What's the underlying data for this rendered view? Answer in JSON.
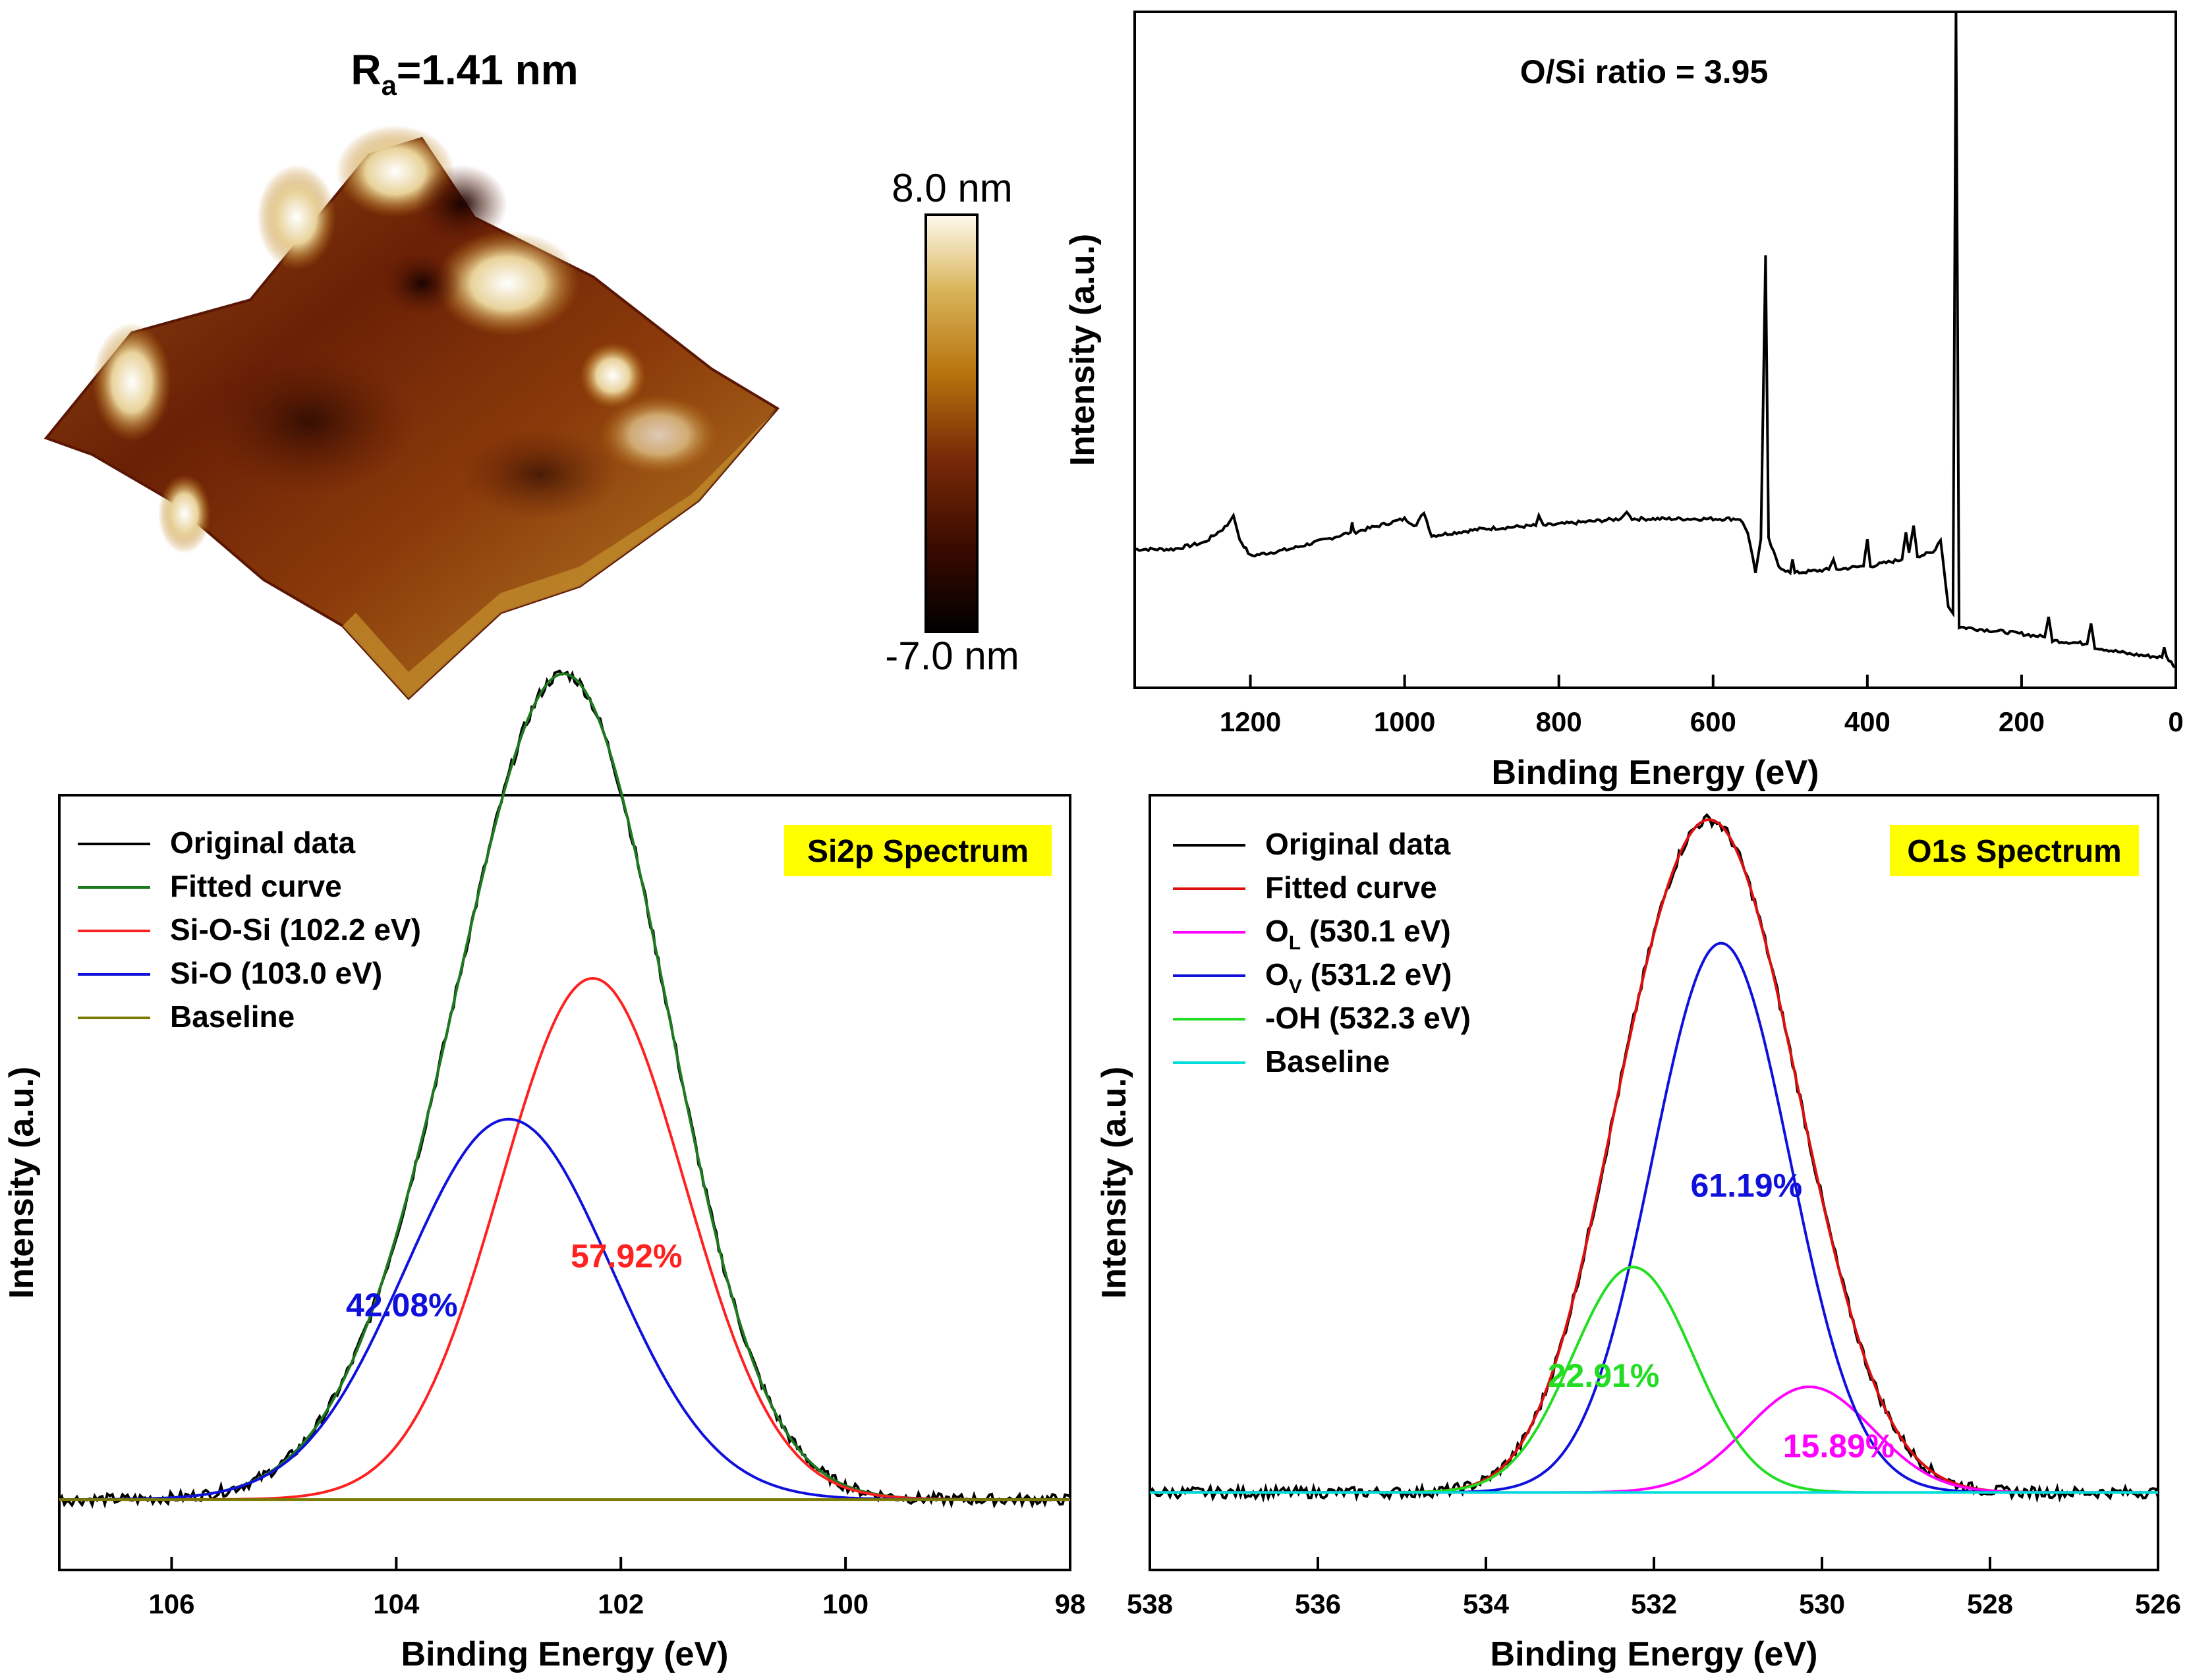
{
  "afm": {
    "title_prefix": "R",
    "title_sub": "a",
    "title_suffix": "=1.41 nm",
    "colorbar_max": "8.0 nm",
    "colorbar_min": "-7.0 nm",
    "colors": [
      "#000000",
      "#3a0a00",
      "#7a2a08",
      "#b8740e",
      "#d9b45a",
      "#fffaf0"
    ]
  },
  "chart_data": [
    {
      "type": "line",
      "id": "survey",
      "title": "O/Si ratio = 3.95",
      "xlabel": "Binding Energy (eV)",
      "ylabel": "Intensity (a.u.)",
      "xlim": [
        1350,
        0
      ],
      "ylim": [
        0,
        100
      ],
      "xticks": [
        1200,
        1000,
        800,
        600,
        400,
        200,
        0
      ],
      "series": [
        {
          "name": "Survey spectrum",
          "color": "#000000",
          "points": [
            [
              1350,
              20.5
            ],
            [
              1300,
              20.5
            ],
            [
              1260,
              21.5
            ],
            [
              1230,
              24
            ],
            [
              1222,
              25.5
            ],
            [
              1214,
              22
            ],
            [
              1200,
              19.5
            ],
            [
              1150,
              20.5
            ],
            [
              1100,
              22
            ],
            [
              1070,
              23
            ],
            [
              1068,
              24.5
            ],
            [
              1066,
              23
            ],
            [
              1000,
              25
            ],
            [
              985,
              24
            ],
            [
              975,
              26
            ],
            [
              965,
              22.5
            ],
            [
              900,
              23.5
            ],
            [
              830,
              24
            ],
            [
              826,
              25.5
            ],
            [
              820,
              24
            ],
            [
              720,
              25
            ],
            [
              712,
              26
            ],
            [
              705,
              25
            ],
            [
              600,
              25
            ],
            [
              565,
              25
            ],
            [
              555,
              23
            ],
            [
              545,
              17
            ],
            [
              538,
              22
            ],
            [
              532,
              64
            ],
            [
              528,
              22
            ],
            [
              515,
              18
            ],
            [
              500,
              17
            ],
            [
              497,
              19
            ],
            [
              494,
              17
            ],
            [
              450,
              17.5
            ],
            [
              444,
              19
            ],
            [
              440,
              17.5
            ],
            [
              405,
              18
            ],
            [
              400,
              22
            ],
            [
              396,
              18
            ],
            [
              355,
              19
            ],
            [
              350,
              23
            ],
            [
              346,
              20
            ],
            [
              340,
              24
            ],
            [
              335,
              19.5
            ],
            [
              315,
              20
            ],
            [
              305,
              22
            ],
            [
              295,
              12
            ],
            [
              289,
              11
            ],
            [
              285,
              100
            ],
            [
              281,
              9
            ],
            [
              200,
              8
            ],
            [
              170,
              7.5
            ],
            [
              165,
              10.5
            ],
            [
              160,
              7
            ],
            [
              115,
              6.5
            ],
            [
              110,
              9.5
            ],
            [
              105,
              6
            ],
            [
              60,
              5
            ],
            [
              18,
              4.5
            ],
            [
              15,
              6
            ],
            [
              12,
              4.5
            ],
            [
              0,
              3
            ]
          ]
        }
      ]
    },
    {
      "type": "line",
      "id": "si2p",
      "title": "Si2p Spectrum",
      "xlabel": "Binding Energy (eV)",
      "ylabel": "Intensity (a.u.)",
      "xlim": [
        107,
        98
      ],
      "ylim": [
        0,
        110
      ],
      "xticks": [
        106,
        104,
        102,
        100,
        98
      ],
      "series": [
        {
          "name": "Original data",
          "color": "#000000",
          "kind": "noisy",
          "peaks": "sum"
        },
        {
          "name": "Fitted curve",
          "color": "#1e7a1e",
          "kind": "sum"
        },
        {
          "name": "Si-O-Si (102.2 eV)",
          "color": "#ff2020",
          "kind": "gauss",
          "center": 102.25,
          "height": 74,
          "sigma": 0.82
        },
        {
          "name": "Si-O (103.0 eV)",
          "color": "#1010dd",
          "kind": "gauss",
          "center": 103.0,
          "height": 54,
          "sigma": 0.92
        },
        {
          "name": "Baseline",
          "color": "#7a7a00",
          "kind": "baseline",
          "level": 10
        }
      ],
      "baseline": 10,
      "annotations": [
        {
          "text": "57.92%",
          "color": "#ff2020",
          "x": 101.95,
          "y": 43
        },
        {
          "text": "42.08%",
          "color": "#1010dd",
          "x": 103.95,
          "y": 36
        }
      ]
    },
    {
      "type": "line",
      "id": "o1s",
      "title": "O1s Spectrum",
      "xlabel": "Binding Energy (eV)",
      "ylabel": "Intensity (a.u.)",
      "xlim": [
        538,
        526
      ],
      "ylim": [
        0,
        110
      ],
      "xticks": [
        538,
        536,
        534,
        532,
        530,
        528,
        526
      ],
      "series": [
        {
          "name": "Original data",
          "color": "#000000",
          "kind": "noisy",
          "peaks": "sum"
        },
        {
          "name": "Fitted curve",
          "color": "#dd1010",
          "kind": "sum"
        },
        {
          "name": "O",
          "sub": "L",
          "suffix": " (530.1 eV)",
          "color": "#ff00ff",
          "kind": "gauss",
          "center": 530.15,
          "height": 15,
          "sigma": 0.75
        },
        {
          "name": "O",
          "sub": "V",
          "suffix": " (531.2 eV)",
          "color": "#1010dd",
          "kind": "gauss",
          "center": 531.2,
          "height": 78,
          "sigma": 0.82
        },
        {
          "name": "-OH (532.3 eV)",
          "color": "#22dd22",
          "kind": "gauss",
          "center": 532.25,
          "height": 32,
          "sigma": 0.72
        },
        {
          "name": "Baseline",
          "color": "#00dddd",
          "kind": "baseline",
          "level": 11
        }
      ],
      "baseline": 11,
      "annotations": [
        {
          "text": "61.19%",
          "color": "#1010dd",
          "x": 530.9,
          "y": 53
        },
        {
          "text": "22.91%",
          "color": "#22dd22",
          "x": 532.6,
          "y": 26
        },
        {
          "text": "15.89%",
          "color": "#ff00ff",
          "x": 529.8,
          "y": 16
        }
      ]
    }
  ]
}
